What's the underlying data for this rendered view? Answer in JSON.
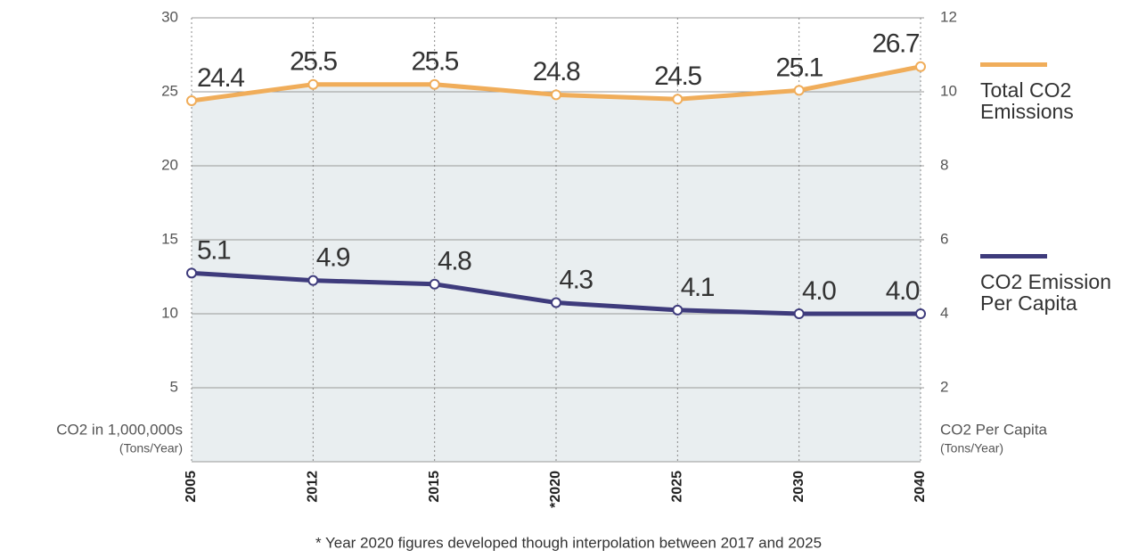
{
  "chart_data": {
    "type": "line",
    "categories": [
      "2005",
      "2012",
      "2015",
      "*2020",
      "2025",
      "2030",
      "2040"
    ],
    "series": [
      {
        "name": "Total CO2 Emissions",
        "color": "#f0ad5a",
        "axis": "y",
        "values": [
          24.4,
          25.5,
          25.5,
          24.8,
          24.5,
          25.1,
          26.7
        ],
        "value_labels": [
          "24.4",
          "25.5",
          "25.5",
          "24.8",
          "24.5",
          "25.1",
          "26.7"
        ]
      },
      {
        "name": "CO2 Emission Per Capita",
        "color": "#3e3b7c",
        "axis": "y2",
        "values": [
          5.1,
          4.9,
          4.8,
          4.3,
          4.1,
          4.0,
          4.0
        ],
        "value_labels": [
          "5.1",
          "4.9",
          "4.8",
          "4.3",
          "4.1",
          "4.0",
          "4.0"
        ]
      }
    ],
    "ylim": [
      0,
      30
    ],
    "yticks": [
      5,
      10,
      15,
      20,
      25,
      30
    ],
    "y2lim": [
      0,
      12
    ],
    "y2ticks": [
      2,
      4,
      6,
      8,
      10,
      12
    ],
    "ylabel": "CO2 in 1,000,000s",
    "ylabel_unit": "(Tons/Year)",
    "y2label": "CO2 Per Capita",
    "y2label_unit": "(Tons/Year)",
    "footnote": "* Year 2020 figures developed though interpolation between 2017 and 2025",
    "grid": true,
    "legend": "right"
  }
}
